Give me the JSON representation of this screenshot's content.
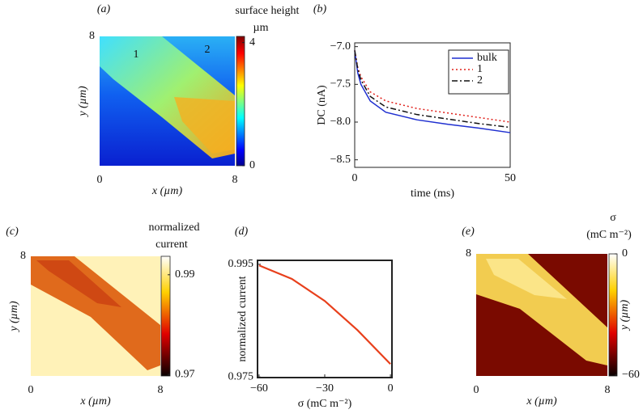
{
  "chart_data": [
    {
      "type": "heatmap",
      "panel_label": "(a)",
      "xlabel": "x (µm)",
      "ylabel": "y (µm)",
      "xlim": [
        0,
        8
      ],
      "ylim": [
        0,
        8
      ],
      "xticks": [
        0,
        8
      ],
      "yticks": [
        8
      ],
      "annotations": [
        "1",
        "2"
      ],
      "colormap": "jet",
      "colorbar": {
        "title": [
          "surface height",
          "µm"
        ],
        "lim": [
          0,
          4.2
        ],
        "ticks": [
          0,
          4
        ]
      }
    },
    {
      "type": "line",
      "panel_label": "(b)",
      "xlabel": "time (ms)",
      "ylabel": "DC (nA)",
      "xlim": [
        0,
        50
      ],
      "ylim": [
        -8.6,
        -6.95
      ],
      "xticks": [
        0,
        50
      ],
      "yticks": [
        {
          "value": -7,
          "label": "−7.0"
        },
        {
          "value": -7.5,
          "label": "−7.5"
        },
        {
          "value": -8,
          "label": "−8.0"
        },
        {
          "value": -8.5,
          "label": "−8.5"
        }
      ],
      "legend": "upper right",
      "x": [
        0,
        1,
        2,
        5,
        10,
        20,
        30,
        40,
        50
      ],
      "series": [
        {
          "name": "bulk",
          "color": "#1f2fd0",
          "style": "solid",
          "values": [
            -7.05,
            -7.35,
            -7.5,
            -7.72,
            -7.87,
            -7.97,
            -8.03,
            -8.08,
            -8.14
          ]
        },
        {
          "name": "1",
          "color": "#e0201a",
          "style": "dotted",
          "values": [
            -7.05,
            -7.28,
            -7.4,
            -7.6,
            -7.72,
            -7.82,
            -7.88,
            -7.94,
            -8.0
          ]
        },
        {
          "name": "2",
          "color": "#111111",
          "style": "dashdot",
          "values": [
            -7.05,
            -7.3,
            -7.44,
            -7.66,
            -7.8,
            -7.9,
            -7.96,
            -8.02,
            -8.07
          ]
        }
      ]
    },
    {
      "type": "heatmap",
      "panel_label": "(c)",
      "xlabel": "x (µm)",
      "ylabel": "y (µm)",
      "xlim": [
        0,
        8
      ],
      "ylim": [
        0,
        8
      ],
      "xticks": [
        0,
        8
      ],
      "yticks": [
        8
      ],
      "colormap": "hot",
      "colorbar": {
        "title": [
          "normalized",
          "current"
        ],
        "lim": [
          0.9697,
          0.9937
        ],
        "ticks": [
          0.97,
          0.99
        ]
      }
    },
    {
      "type": "line",
      "panel_label": "(d)",
      "xlabel": "σ (mC m⁻²)",
      "ylabel": "normalized current",
      "xlim": [
        -60.7,
        0.7
      ],
      "ylim": [
        0.9749,
        0.9957
      ],
      "xticks": [
        {
          "value": -60,
          "label": "−60"
        },
        {
          "value": -30,
          "label": "−30"
        },
        0
      ],
      "yticks": [
        0.975,
        0.995
      ],
      "x": [
        -60,
        -45,
        -30,
        -15,
        0
      ],
      "values": [
        0.9948,
        0.9924,
        0.9885,
        0.9833,
        0.9773
      ],
      "color": "#e8401c"
    },
    {
      "type": "heatmap",
      "panel_label": "(e)",
      "xlabel": "x (µm)",
      "ylabel": "y (µm)",
      "xlim": [
        0,
        8
      ],
      "ylim": [
        0,
        8
      ],
      "xticks": [
        0,
        8
      ],
      "yticks": [
        8
      ],
      "colormap": "hot",
      "colorbar": {
        "title": [
          "σ",
          "(mC m⁻²)"
        ],
        "lim": [
          -60.5,
          0
        ],
        "ticks": [
          {
            "value": -60,
            "label": "−60"
          },
          0
        ]
      }
    }
  ]
}
